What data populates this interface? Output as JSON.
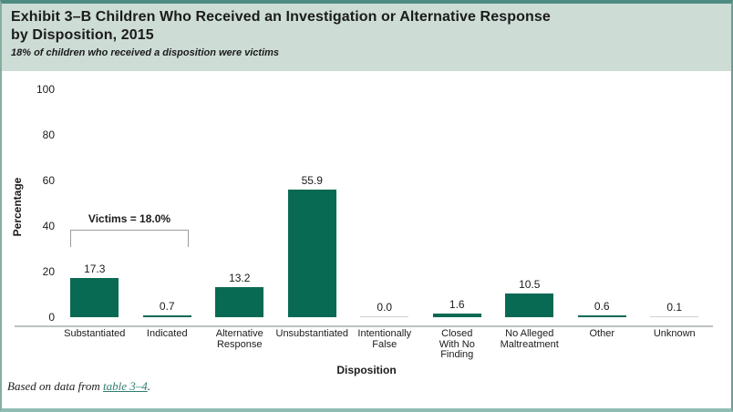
{
  "header": {
    "title_line1": "Exhibit 3–B Children Who Received an Investigation or Alternative Response",
    "title_line2": "by Disposition, 2015",
    "subtitle": "18% of children who received a disposition were victims"
  },
  "chart_data": {
    "type": "bar",
    "title": "Exhibit 3–B Children Who Received an Investigation or Alternative Response by Disposition, 2015",
    "subtitle": "18% of children who received a disposition were victims",
    "categories": [
      "Substantiated",
      "Indicated",
      "Alternative Response",
      "Unsubstantiated",
      "Intentionally False",
      "Closed With No Finding",
      "No Alleged Maltreatment",
      "Other",
      "Unknown"
    ],
    "category_lines": [
      [
        "Substantiated"
      ],
      [
        "Indicated"
      ],
      [
        "Alternative",
        "Response"
      ],
      [
        "Unsubstantiated"
      ],
      [
        "Intentionally",
        "False"
      ],
      [
        "Closed",
        "With No",
        "Finding"
      ],
      [
        "No Alleged",
        "Maltreatment"
      ],
      [
        "Other"
      ],
      [
        "Unknown"
      ]
    ],
    "values": [
      17.3,
      0.7,
      13.2,
      55.9,
      0.0,
      1.6,
      10.5,
      0.6,
      0.1
    ],
    "value_labels": [
      "17.3",
      "0.7",
      "13.2",
      "55.9",
      "0.0",
      "1.6",
      "10.5",
      "0.6",
      "0.1"
    ],
    "xlabel": "Disposition",
    "ylabel": "Percentage",
    "ylim": [
      0,
      100
    ],
    "yticks": [
      0,
      20,
      40,
      60,
      80,
      100
    ],
    "grid": false,
    "legend": false,
    "annotation": {
      "text": "Victims = 18.0%",
      "span_categories": [
        "Substantiated",
        "Indicated"
      ]
    },
    "colors": {
      "bar": "#086a53",
      "near_zero_bar": "#ccd3d1",
      "header_background": "#cdddd6",
      "panel_border": "#4e8c83",
      "axis_line": "#bcc2c0",
      "link": "#2e7d6f"
    }
  },
  "footer": {
    "text_prefix": "Based on data from ",
    "link_text": "table 3–4",
    "text_suffix": "."
  }
}
